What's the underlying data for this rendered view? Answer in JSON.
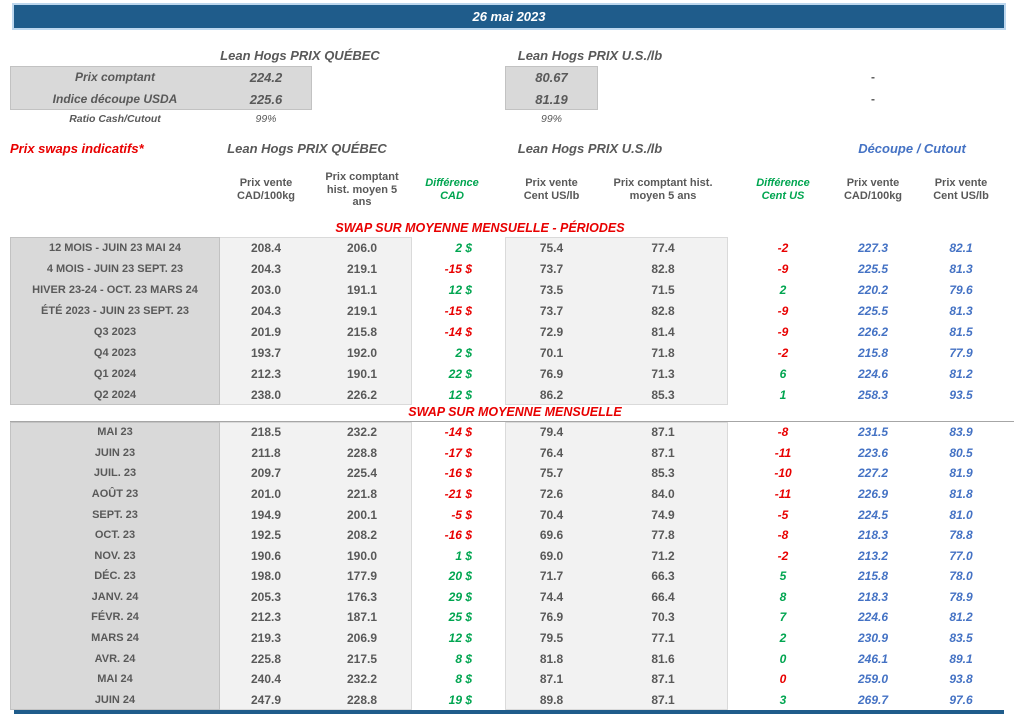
{
  "colors": {
    "header_bar": "#1f5c8b",
    "red": "#e80000",
    "green": "#00a550",
    "blue": "#4472c4",
    "ink": "#595959",
    "label_bg": "#d9d9d9",
    "data_bg": "#f2f2f2"
  },
  "title_bar": {
    "date": "26 mai 2023"
  },
  "summary": {
    "qc_header": "Lean Hogs PRIX QUÉBEC",
    "us_header": "Lean Hogs PRIX U.S./lb",
    "rows": [
      {
        "label": "Prix comptant",
        "qc": "224.2",
        "us": "80.67",
        "note": "-"
      },
      {
        "label": "Indice découpe USDA",
        "qc": "225.6",
        "us": "81.19",
        "note": "-"
      },
      {
        "label": "Ratio Cash/Cutout",
        "qc": "99%",
        "us": "99%",
        "note": ""
      }
    ]
  },
  "swaps": {
    "title": "Prix swaps indicatifs*",
    "qc_header": "Lean Hogs PRIX QUÉBEC",
    "us_header": "Lean Hogs PRIX U.S./lb",
    "cutout_header": "Découpe / Cutout",
    "col_headers": {
      "cad_sell": "Prix vente\nCAD/100kg",
      "cad_hist": "Prix comptant\nhist. moyen 5\nans",
      "cad_diff": "Différence\nCAD",
      "us_sell": "Prix vente\nCent US/lb",
      "us_hist": "Prix comptant hist.\nmoyen 5 ans",
      "us_diff": "Différence\nCent US",
      "cutout_cad": "Prix vente\nCAD/100kg",
      "cutout_us": "Prix vente\nCent US/lb"
    },
    "sections": [
      {
        "header": "SWAP SUR MOYENNE MENSUELLE - PÉRIODES",
        "rows": [
          {
            "label": "12 MOIS - JUIN 23 MAI 24",
            "cad_sell": "208.4",
            "cad_hist": "206.0",
            "cad_diff": "2 $",
            "cad_diff_color": "green",
            "us_sell": "75.4",
            "us_hist": "77.4",
            "us_diff": "-2",
            "us_diff_color": "red",
            "cutout_cad": "227.3",
            "cutout_us": "82.1"
          },
          {
            "label": "4 MOIS - JUIN 23 SEPT. 23",
            "cad_sell": "204.3",
            "cad_hist": "219.1",
            "cad_diff": "-15 $",
            "cad_diff_color": "red",
            "us_sell": "73.7",
            "us_hist": "82.8",
            "us_diff": "-9",
            "us_diff_color": "red",
            "cutout_cad": "225.5",
            "cutout_us": "81.3"
          },
          {
            "label": "HIVER 23-24 -  OCT. 23 MARS 24",
            "cad_sell": "203.0",
            "cad_hist": "191.1",
            "cad_diff": "12 $",
            "cad_diff_color": "green",
            "us_sell": "73.5",
            "us_hist": "71.5",
            "us_diff": "2",
            "us_diff_color": "green",
            "cutout_cad": "220.2",
            "cutout_us": "79.6"
          },
          {
            "label": "ÉTÉ 2023 - JUIN 23 SEPT. 23",
            "cad_sell": "204.3",
            "cad_hist": "219.1",
            "cad_diff": "-15 $",
            "cad_diff_color": "red",
            "us_sell": "73.7",
            "us_hist": "82.8",
            "us_diff": "-9",
            "us_diff_color": "red",
            "cutout_cad": "225.5",
            "cutout_us": "81.3"
          },
          {
            "label": "Q3 2023",
            "cad_sell": "201.9",
            "cad_hist": "215.8",
            "cad_diff": "-14 $",
            "cad_diff_color": "red",
            "us_sell": "72.9",
            "us_hist": "81.4",
            "us_diff": "-9",
            "us_diff_color": "red",
            "cutout_cad": "226.2",
            "cutout_us": "81.5"
          },
          {
            "label": "Q4 2023",
            "cad_sell": "193.7",
            "cad_hist": "192.0",
            "cad_diff": "2 $",
            "cad_diff_color": "green",
            "us_sell": "70.1",
            "us_hist": "71.8",
            "us_diff": "-2",
            "us_diff_color": "red",
            "cutout_cad": "215.8",
            "cutout_us": "77.9"
          },
          {
            "label": "Q1 2024",
            "cad_sell": "212.3",
            "cad_hist": "190.1",
            "cad_diff": "22 $",
            "cad_diff_color": "green",
            "us_sell": "76.9",
            "us_hist": "71.3",
            "us_diff": "6",
            "us_diff_color": "green",
            "cutout_cad": "224.6",
            "cutout_us": "81.2"
          },
          {
            "label": "Q2 2024",
            "cad_sell": "238.0",
            "cad_hist": "226.2",
            "cad_diff": "12 $",
            "cad_diff_color": "green",
            "us_sell": "86.2",
            "us_hist": "85.3",
            "us_diff": "1",
            "us_diff_color": "green",
            "cutout_cad": "258.3",
            "cutout_us": "93.5"
          }
        ]
      },
      {
        "header": "SWAP SUR MOYENNE MENSUELLE",
        "rows": [
          {
            "label": "MAI 23",
            "cad_sell": "218.5",
            "cad_hist": "232.2",
            "cad_diff": "-14 $",
            "cad_diff_color": "red",
            "us_sell": "79.4",
            "us_hist": "87.1",
            "us_diff": "-8",
            "us_diff_color": "red",
            "cutout_cad": "231.5",
            "cutout_us": "83.9"
          },
          {
            "label": "JUIN 23",
            "cad_sell": "211.8",
            "cad_hist": "228.8",
            "cad_diff": "-17 $",
            "cad_diff_color": "red",
            "us_sell": "76.4",
            "us_hist": "87.1",
            "us_diff": "-11",
            "us_diff_color": "red",
            "cutout_cad": "223.6",
            "cutout_us": "80.5"
          },
          {
            "label": "JUIL. 23",
            "cad_sell": "209.7",
            "cad_hist": "225.4",
            "cad_diff": "-16 $",
            "cad_diff_color": "red",
            "us_sell": "75.7",
            "us_hist": "85.3",
            "us_diff": "-10",
            "us_diff_color": "red",
            "cutout_cad": "227.2",
            "cutout_us": "81.9"
          },
          {
            "label": "AOÛT 23",
            "cad_sell": "201.0",
            "cad_hist": "221.8",
            "cad_diff": "-21 $",
            "cad_diff_color": "red",
            "us_sell": "72.6",
            "us_hist": "84.0",
            "us_diff": "-11",
            "us_diff_color": "red",
            "cutout_cad": "226.9",
            "cutout_us": "81.8"
          },
          {
            "label": "SEPT. 23",
            "cad_sell": "194.9",
            "cad_hist": "200.1",
            "cad_diff": "-5 $",
            "cad_diff_color": "red",
            "us_sell": "70.4",
            "us_hist": "74.9",
            "us_diff": "-5",
            "us_diff_color": "red",
            "cutout_cad": "224.5",
            "cutout_us": "81.0"
          },
          {
            "label": "OCT. 23",
            "cad_sell": "192.5",
            "cad_hist": "208.2",
            "cad_diff": "-16 $",
            "cad_diff_color": "red",
            "us_sell": "69.6",
            "us_hist": "77.8",
            "us_diff": "-8",
            "us_diff_color": "red",
            "cutout_cad": "218.3",
            "cutout_us": "78.8"
          },
          {
            "label": "NOV. 23",
            "cad_sell": "190.6",
            "cad_hist": "190.0",
            "cad_diff": "1 $",
            "cad_diff_color": "green",
            "us_sell": "69.0",
            "us_hist": "71.2",
            "us_diff": "-2",
            "us_diff_color": "red",
            "cutout_cad": "213.2",
            "cutout_us": "77.0"
          },
          {
            "label": "DÉC. 23",
            "cad_sell": "198.0",
            "cad_hist": "177.9",
            "cad_diff": "20 $",
            "cad_diff_color": "green",
            "us_sell": "71.7",
            "us_hist": "66.3",
            "us_diff": "5",
            "us_diff_color": "green",
            "cutout_cad": "215.8",
            "cutout_us": "78.0"
          },
          {
            "label": "JANV. 24",
            "cad_sell": "205.3",
            "cad_hist": "176.3",
            "cad_diff": "29 $",
            "cad_diff_color": "green",
            "us_sell": "74.4",
            "us_hist": "66.4",
            "us_diff": "8",
            "us_diff_color": "green",
            "cutout_cad": "218.3",
            "cutout_us": "78.9"
          },
          {
            "label": "FÉVR. 24",
            "cad_sell": "212.3",
            "cad_hist": "187.1",
            "cad_diff": "25 $",
            "cad_diff_color": "green",
            "us_sell": "76.9",
            "us_hist": "70.3",
            "us_diff": "7",
            "us_diff_color": "green",
            "cutout_cad": "224.6",
            "cutout_us": "81.2"
          },
          {
            "label": "MARS 24",
            "cad_sell": "219.3",
            "cad_hist": "206.9",
            "cad_diff": "12 $",
            "cad_diff_color": "green",
            "us_sell": "79.5",
            "us_hist": "77.1",
            "us_diff": "2",
            "us_diff_color": "green",
            "cutout_cad": "230.9",
            "cutout_us": "83.5"
          },
          {
            "label": "AVR. 24",
            "cad_sell": "225.8",
            "cad_hist": "217.5",
            "cad_diff": "8 $",
            "cad_diff_color": "green",
            "us_sell": "81.8",
            "us_hist": "81.6",
            "us_diff": "0",
            "us_diff_color": "green",
            "cutout_cad": "246.1",
            "cutout_us": "89.1"
          },
          {
            "label": "MAI 24",
            "cad_sell": "240.4",
            "cad_hist": "232.2",
            "cad_diff": "8 $",
            "cad_diff_color": "green",
            "us_sell": "87.1",
            "us_hist": "87.1",
            "us_diff": "0",
            "us_diff_color": "red",
            "cutout_cad": "259.0",
            "cutout_us": "93.8"
          },
          {
            "label": "JUIN 24",
            "cad_sell": "247.9",
            "cad_hist": "228.8",
            "cad_diff": "19 $",
            "cad_diff_color": "green",
            "us_sell": "89.8",
            "us_hist": "87.1",
            "us_diff": "3",
            "us_diff_color": "green",
            "cutout_cad": "269.7",
            "cutout_us": "97.6"
          }
        ]
      }
    ]
  }
}
